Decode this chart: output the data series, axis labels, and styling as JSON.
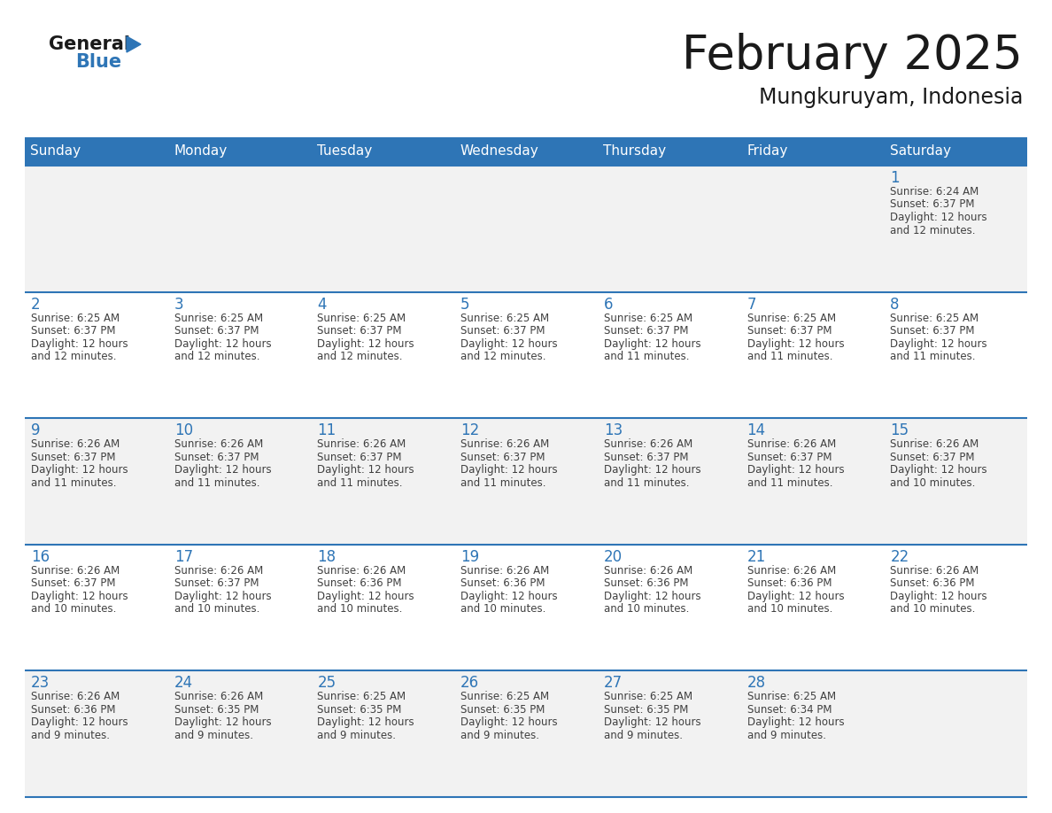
{
  "title": "February 2025",
  "subtitle": "Mungkuruyam, Indonesia",
  "header_color": "#2E75B6",
  "header_text_color": "#FFFFFF",
  "cell_bg_even": "#F2F2F2",
  "cell_bg_odd": "#FFFFFF",
  "day_number_color": "#2E75B6",
  "text_color": "#404040",
  "line_color": "#2E75B6",
  "days_of_week": [
    "Sunday",
    "Monday",
    "Tuesday",
    "Wednesday",
    "Thursday",
    "Friday",
    "Saturday"
  ],
  "calendar": [
    [
      null,
      null,
      null,
      null,
      null,
      null,
      1
    ],
    [
      2,
      3,
      4,
      5,
      6,
      7,
      8
    ],
    [
      9,
      10,
      11,
      12,
      13,
      14,
      15
    ],
    [
      16,
      17,
      18,
      19,
      20,
      21,
      22
    ],
    [
      23,
      24,
      25,
      26,
      27,
      28,
      null
    ]
  ],
  "cell_data": {
    "1": {
      "sunrise": "6:24 AM",
      "sunset": "6:37 PM",
      "daylight": "12 hours",
      "daylight2": "and 12 minutes."
    },
    "2": {
      "sunrise": "6:25 AM",
      "sunset": "6:37 PM",
      "daylight": "12 hours",
      "daylight2": "and 12 minutes."
    },
    "3": {
      "sunrise": "6:25 AM",
      "sunset": "6:37 PM",
      "daylight": "12 hours",
      "daylight2": "and 12 minutes."
    },
    "4": {
      "sunrise": "6:25 AM",
      "sunset": "6:37 PM",
      "daylight": "12 hours",
      "daylight2": "and 12 minutes."
    },
    "5": {
      "sunrise": "6:25 AM",
      "sunset": "6:37 PM",
      "daylight": "12 hours",
      "daylight2": "and 12 minutes."
    },
    "6": {
      "sunrise": "6:25 AM",
      "sunset": "6:37 PM",
      "daylight": "12 hours",
      "daylight2": "and 11 minutes."
    },
    "7": {
      "sunrise": "6:25 AM",
      "sunset": "6:37 PM",
      "daylight": "12 hours",
      "daylight2": "and 11 minutes."
    },
    "8": {
      "sunrise": "6:25 AM",
      "sunset": "6:37 PM",
      "daylight": "12 hours",
      "daylight2": "and 11 minutes."
    },
    "9": {
      "sunrise": "6:26 AM",
      "sunset": "6:37 PM",
      "daylight": "12 hours",
      "daylight2": "and 11 minutes."
    },
    "10": {
      "sunrise": "6:26 AM",
      "sunset": "6:37 PM",
      "daylight": "12 hours",
      "daylight2": "and 11 minutes."
    },
    "11": {
      "sunrise": "6:26 AM",
      "sunset": "6:37 PM",
      "daylight": "12 hours",
      "daylight2": "and 11 minutes."
    },
    "12": {
      "sunrise": "6:26 AM",
      "sunset": "6:37 PM",
      "daylight": "12 hours",
      "daylight2": "and 11 minutes."
    },
    "13": {
      "sunrise": "6:26 AM",
      "sunset": "6:37 PM",
      "daylight": "12 hours",
      "daylight2": "and 11 minutes."
    },
    "14": {
      "sunrise": "6:26 AM",
      "sunset": "6:37 PM",
      "daylight": "12 hours",
      "daylight2": "and 11 minutes."
    },
    "15": {
      "sunrise": "6:26 AM",
      "sunset": "6:37 PM",
      "daylight": "12 hours",
      "daylight2": "and 10 minutes."
    },
    "16": {
      "sunrise": "6:26 AM",
      "sunset": "6:37 PM",
      "daylight": "12 hours",
      "daylight2": "and 10 minutes."
    },
    "17": {
      "sunrise": "6:26 AM",
      "sunset": "6:37 PM",
      "daylight": "12 hours",
      "daylight2": "and 10 minutes."
    },
    "18": {
      "sunrise": "6:26 AM",
      "sunset": "6:36 PM",
      "daylight": "12 hours",
      "daylight2": "and 10 minutes."
    },
    "19": {
      "sunrise": "6:26 AM",
      "sunset": "6:36 PM",
      "daylight": "12 hours",
      "daylight2": "and 10 minutes."
    },
    "20": {
      "sunrise": "6:26 AM",
      "sunset": "6:36 PM",
      "daylight": "12 hours",
      "daylight2": "and 10 minutes."
    },
    "21": {
      "sunrise": "6:26 AM",
      "sunset": "6:36 PM",
      "daylight": "12 hours",
      "daylight2": "and 10 minutes."
    },
    "22": {
      "sunrise": "6:26 AM",
      "sunset": "6:36 PM",
      "daylight": "12 hours",
      "daylight2": "and 10 minutes."
    },
    "23": {
      "sunrise": "6:26 AM",
      "sunset": "6:36 PM",
      "daylight": "12 hours",
      "daylight2": "and 9 minutes."
    },
    "24": {
      "sunrise": "6:26 AM",
      "sunset": "6:35 PM",
      "daylight": "12 hours",
      "daylight2": "and 9 minutes."
    },
    "25": {
      "sunrise": "6:25 AM",
      "sunset": "6:35 PM",
      "daylight": "12 hours",
      "daylight2": "and 9 minutes."
    },
    "26": {
      "sunrise": "6:25 AM",
      "sunset": "6:35 PM",
      "daylight": "12 hours",
      "daylight2": "and 9 minutes."
    },
    "27": {
      "sunrise": "6:25 AM",
      "sunset": "6:35 PM",
      "daylight": "12 hours",
      "daylight2": "and 9 minutes."
    },
    "28": {
      "sunrise": "6:25 AM",
      "sunset": "6:34 PM",
      "daylight": "12 hours",
      "daylight2": "and 9 minutes."
    }
  },
  "logo_triangle_color": "#2E75B6",
  "figsize": [
    11.88,
    9.18
  ],
  "dpi": 100
}
